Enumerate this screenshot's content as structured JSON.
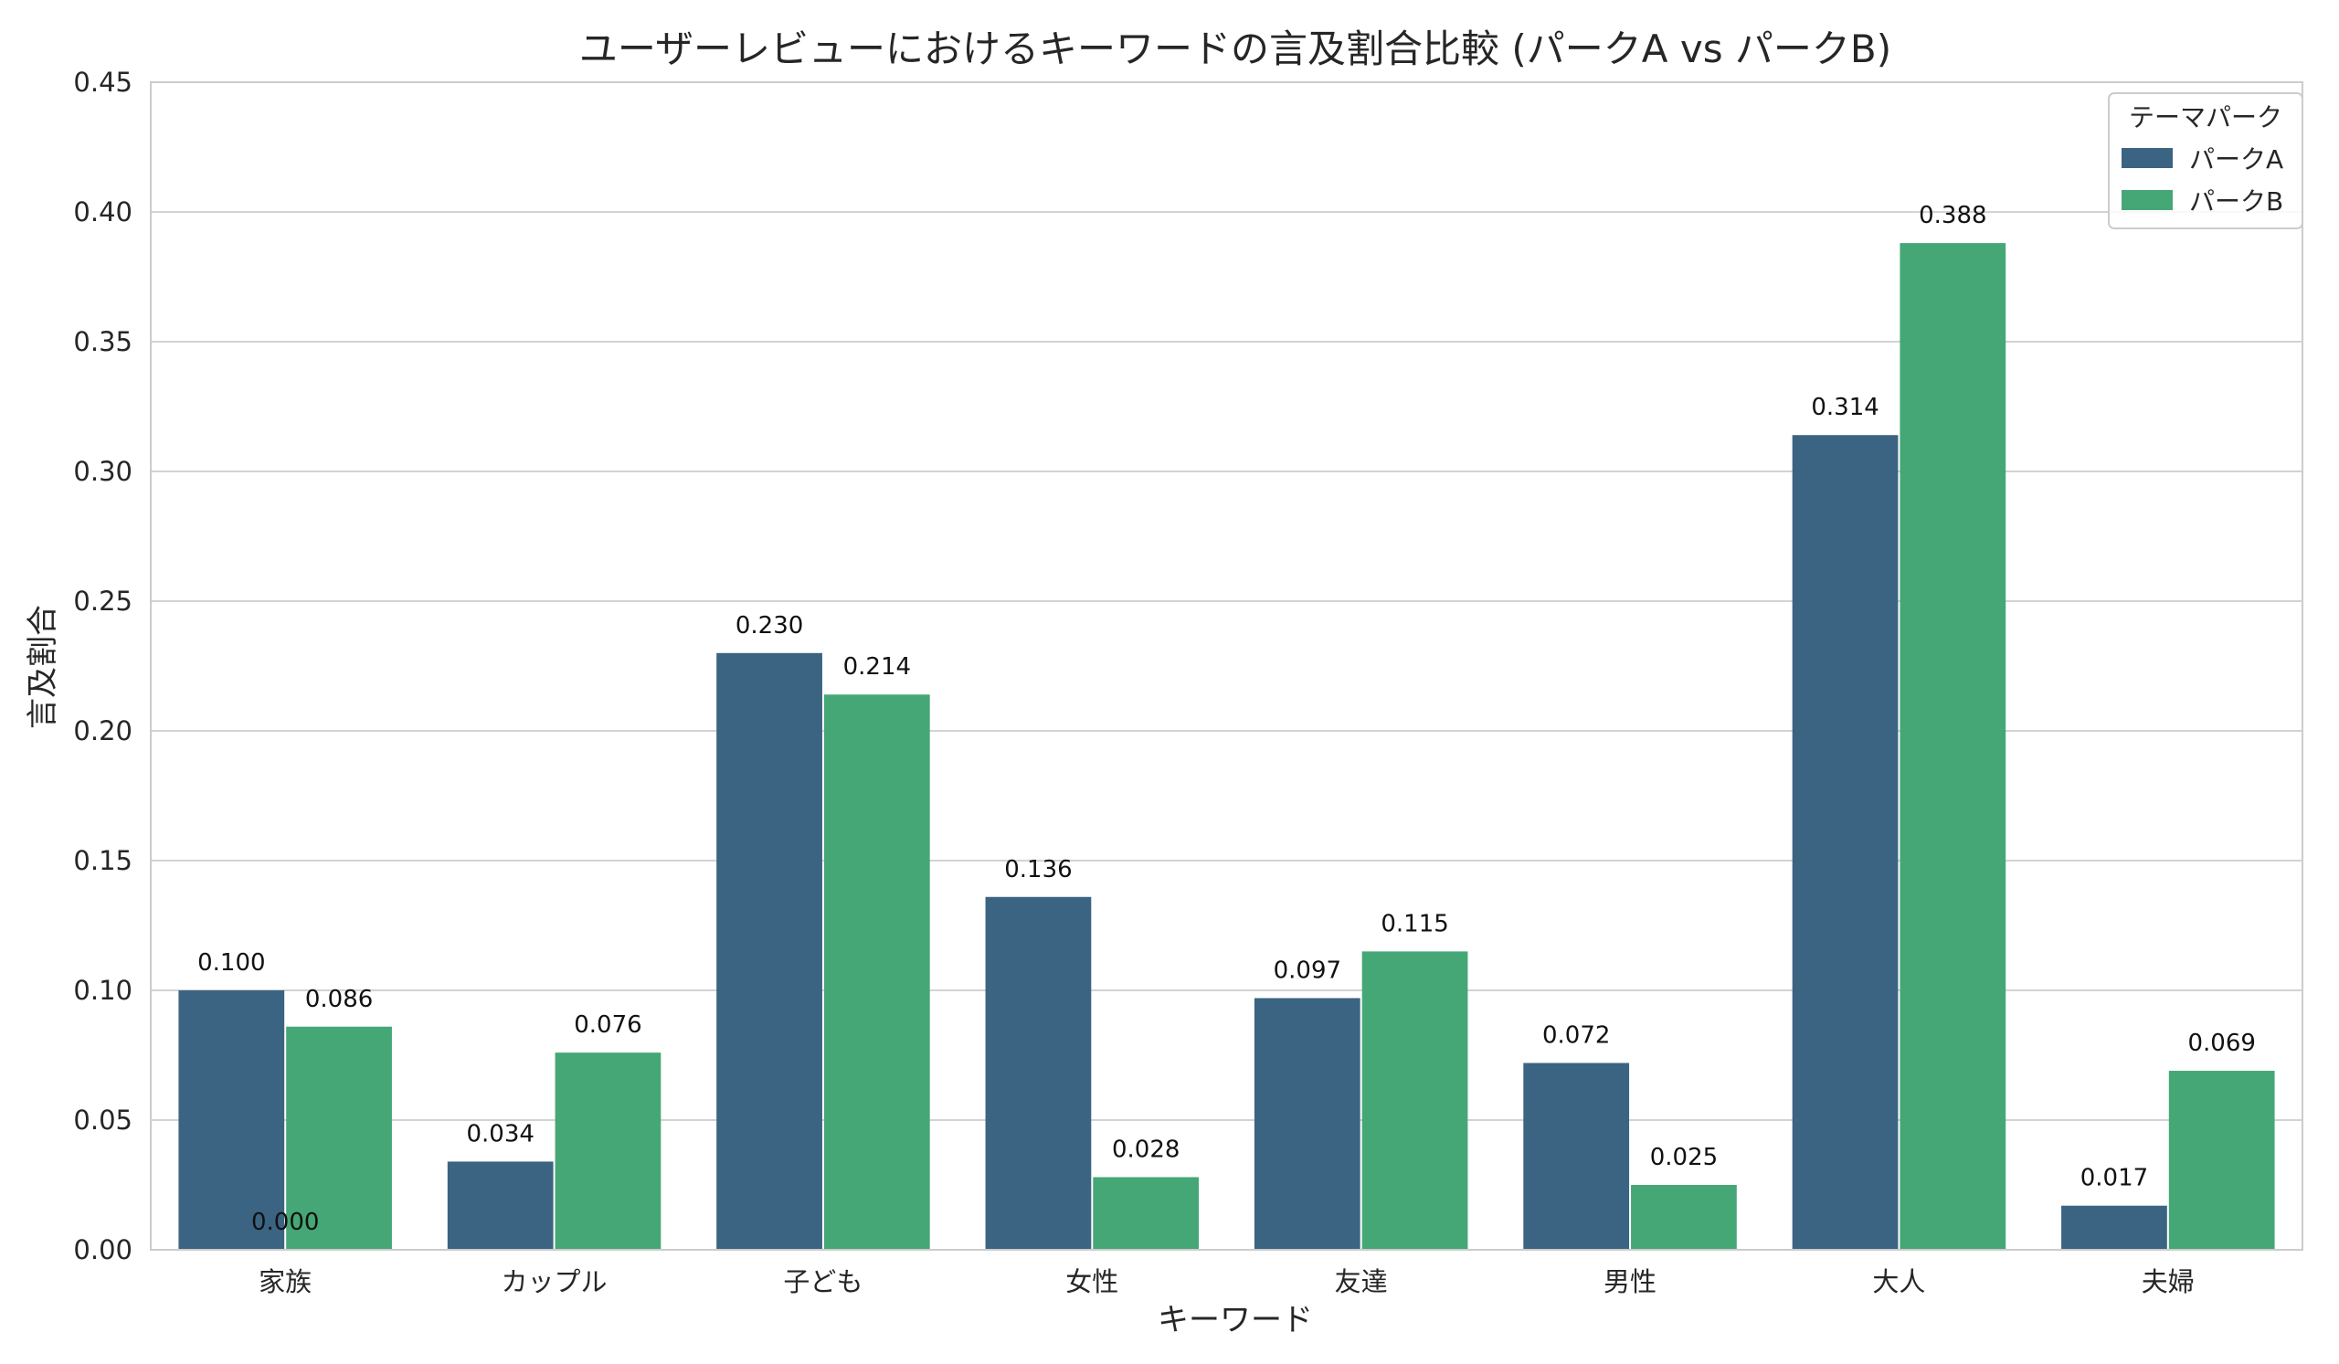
{
  "chart_data": {
    "type": "bar",
    "title": "ユーザーレビューにおけるキーワードの言及割合比較 (パークA vs パークB)",
    "xlabel": "キーワード",
    "ylabel": "言及割合",
    "ylim": [
      0,
      0.45
    ],
    "yticks": [
      0.0,
      0.05,
      0.1,
      0.15,
      0.2,
      0.25,
      0.3,
      0.35,
      0.4,
      0.45
    ],
    "ytick_labels": [
      "0.00",
      "0.05",
      "0.10",
      "0.15",
      "0.20",
      "0.25",
      "0.30",
      "0.35",
      "0.40",
      "0.45"
    ],
    "categories": [
      "家族",
      "カップル",
      "子ども",
      "女性",
      "友達",
      "男性",
      "大人",
      "夫婦"
    ],
    "series": [
      {
        "name": "パークA",
        "color": "#3b6482",
        "values": [
          0.1,
          0.034,
          0.23,
          0.136,
          0.097,
          0.072,
          0.314,
          0.017
        ],
        "labels": [
          "0.100",
          "0.034",
          "0.230",
          "0.136",
          "0.097",
          "0.072",
          "0.314",
          "0.017"
        ]
      },
      {
        "name": "パークB",
        "color": "#45a775",
        "values": [
          0.086,
          0.076,
          0.214,
          0.028,
          0.115,
          0.025,
          0.388,
          0.069
        ],
        "labels": [
          "0.086",
          "0.076",
          "0.214",
          "0.028",
          "0.115",
          "0.025",
          "0.388",
          "0.069"
        ]
      }
    ],
    "extra_annotation": "0.000",
    "legend": {
      "title": "テーマパーク",
      "placement": "top-right"
    },
    "grid": "horizontal"
  }
}
